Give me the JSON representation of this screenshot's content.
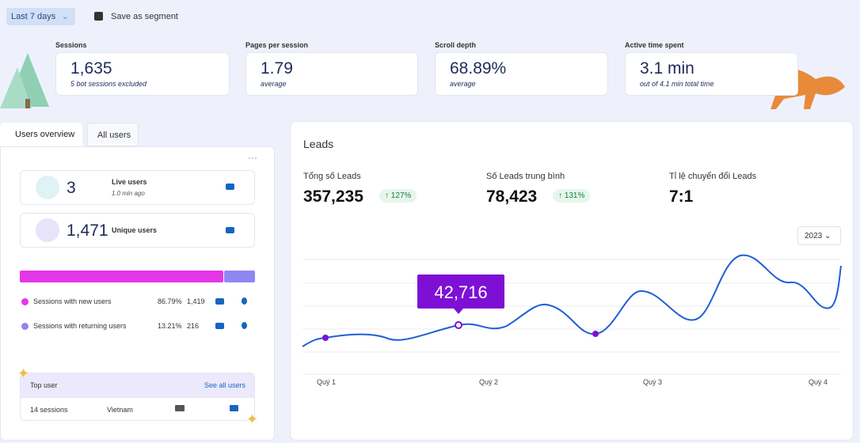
{
  "toolbar": {
    "range": "Last 7 days",
    "save": "Save as segment"
  },
  "metrics": [
    {
      "label": "Sessions",
      "value": "1,635",
      "note": "5 bot sessions excluded"
    },
    {
      "label": "Pages per session",
      "value": "1.79",
      "note": "average"
    },
    {
      "label": "Scroll depth",
      "value": "68.89%",
      "note": "average"
    },
    {
      "label": "Active time spent",
      "value": "3.1 min",
      "note": "out of 4.1 min total time"
    }
  ],
  "tabs": [
    "Users overview",
    "All users"
  ],
  "users": {
    "live": {
      "value": "3",
      "label": "Live users",
      "note": "1.0 min ago"
    },
    "unique": {
      "value": "1,471",
      "label": "Unique users"
    }
  },
  "sessions": {
    "names": [
      "Sessions with new users",
      "Sessions with returning users"
    ],
    "colors": [
      "#e535e8",
      "#8f86f5"
    ],
    "values": [
      86.79,
      13.21
    ],
    "value_labels": [
      "86.79%",
      "13.21%"
    ],
    "counts": [
      "1,419",
      "216"
    ]
  },
  "top_user": {
    "title": "Top user",
    "link": "See all users",
    "sessions": "14 sessions",
    "country": "Vietnam"
  },
  "leads": {
    "title": "Leads",
    "stats": [
      {
        "label": "Tổng số Leads",
        "value": "357,235",
        "change": "127%"
      },
      {
        "label": "Số Leads trung bình",
        "value": "78,423",
        "change": "131%"
      },
      {
        "label": "Tỉ lệ chuyển đổi Leads",
        "value": "7:1"
      }
    ],
    "year": "2023",
    "chart": {
      "type": "line",
      "categories": [
        "Quý 1",
        "Quý 2",
        "Quý 3",
        "Quý 4"
      ],
      "highlight": {
        "value": 42716,
        "label": "42,716"
      }
    }
  }
}
